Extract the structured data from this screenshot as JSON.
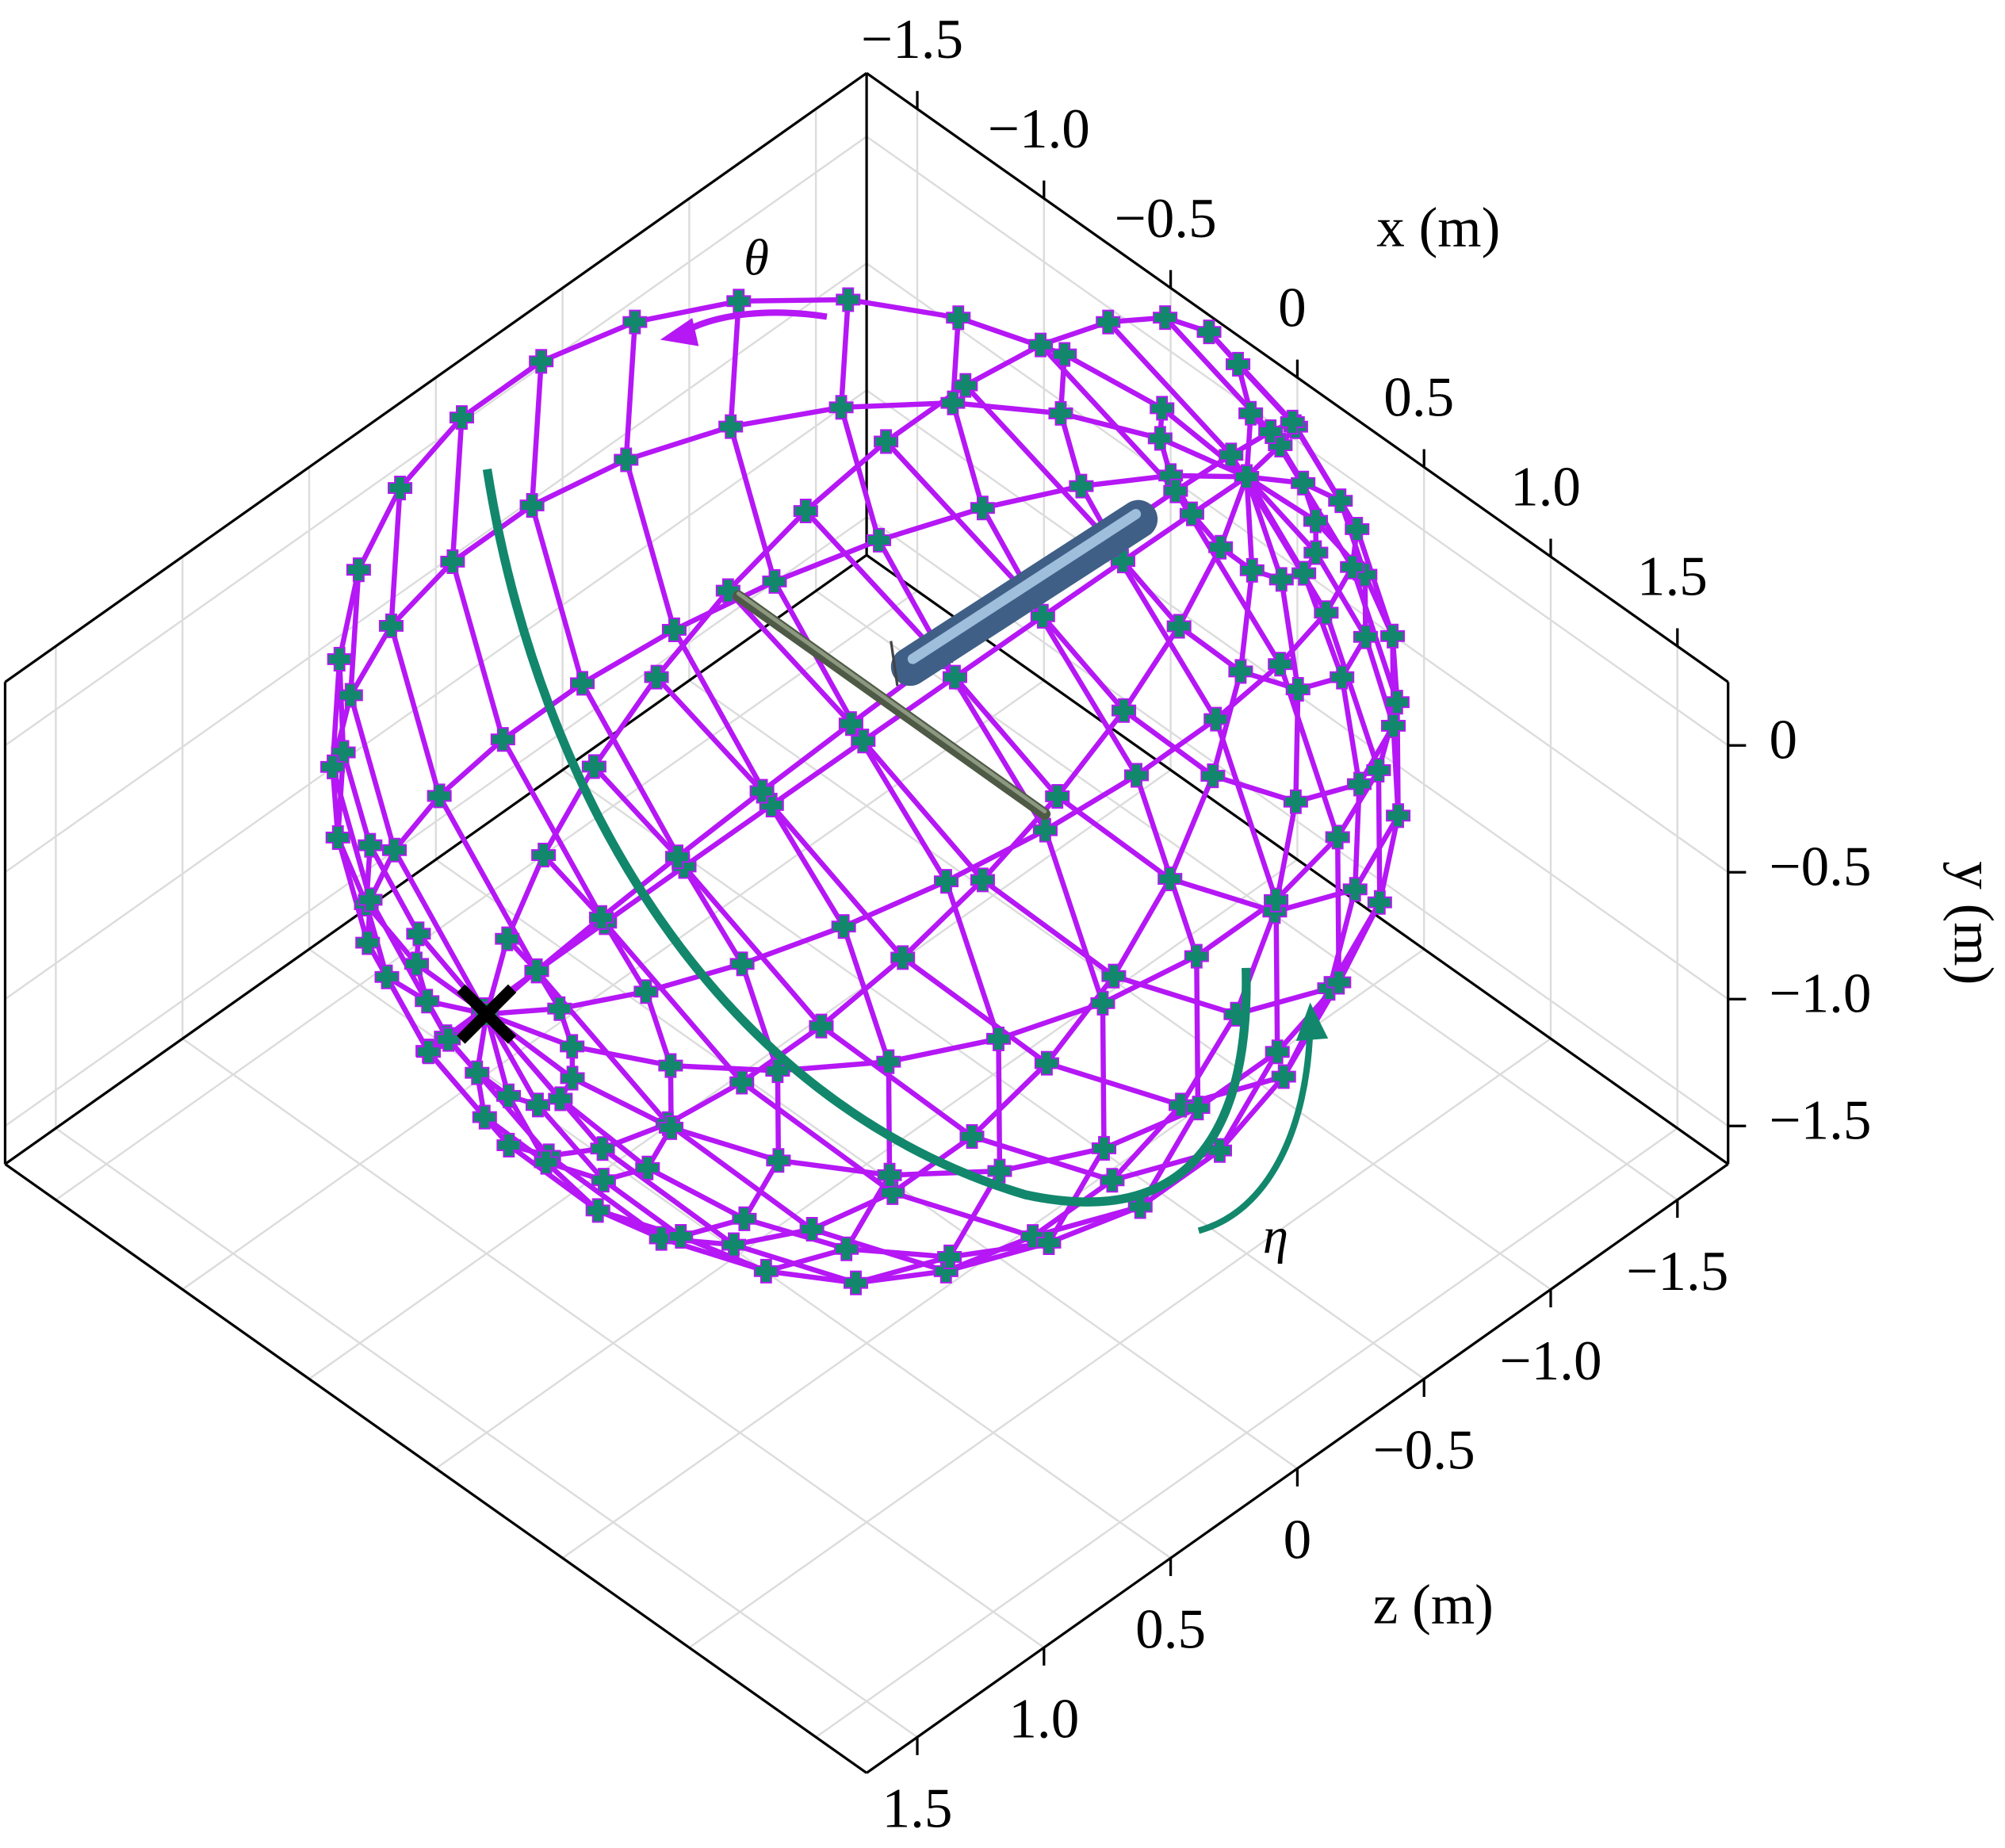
{
  "chart_data": {
    "type": "wireframe3d",
    "xlabel": "x (m)",
    "ylabel": "y (m)",
    "zlabel": "z (m)",
    "xlim": [
      -1.7,
      1.7
    ],
    "ylim": [
      -1.65,
      0.25
    ],
    "zlim": [
      -1.7,
      1.7
    ],
    "xticks": [
      {
        "value": -1.5,
        "label": "−1.5"
      },
      {
        "value": -1,
        "label": "−1.0"
      },
      {
        "value": -0.5,
        "label": "−0.5"
      },
      0,
      0.5,
      {
        "value": 1,
        "label": "1.0"
      },
      1.5
    ],
    "yticks": [
      0,
      {
        "value": -0.5,
        "label": "−0.5"
      },
      {
        "value": -1,
        "label": "−1.0"
      },
      {
        "value": -1.5,
        "label": "−1.5"
      }
    ],
    "zticks": [
      {
        "value": -1.5,
        "label": "−1.5"
      },
      {
        "value": -1,
        "label": "−1.0"
      },
      {
        "value": -0.5,
        "label": "−0.5"
      },
      0,
      0.5,
      {
        "value": 1,
        "label": "1.0"
      },
      1.5
    ],
    "grid": true,
    "mesh": {
      "radius": 1.5,
      "eta_deg": [
        -195,
        -172,
        -149,
        -126,
        -103,
        -80,
        -57,
        -34,
        -11,
        12,
        35,
        58,
        81
      ],
      "phi_deg": [
        0,
        12,
        24,
        36,
        48,
        60,
        72,
        84,
        96,
        108,
        120,
        132,
        144,
        156,
        168,
        180
      ],
      "line_color": "#b517f5",
      "marker_color": "#12876c"
    },
    "marker": {
      "x": 0,
      "y": 0,
      "z": 1.5,
      "color": "#000000"
    },
    "annotations": [
      {
        "text": "θ",
        "color": "#b517f5"
      },
      {
        "text": "η",
        "color": "#12876c"
      }
    ]
  }
}
